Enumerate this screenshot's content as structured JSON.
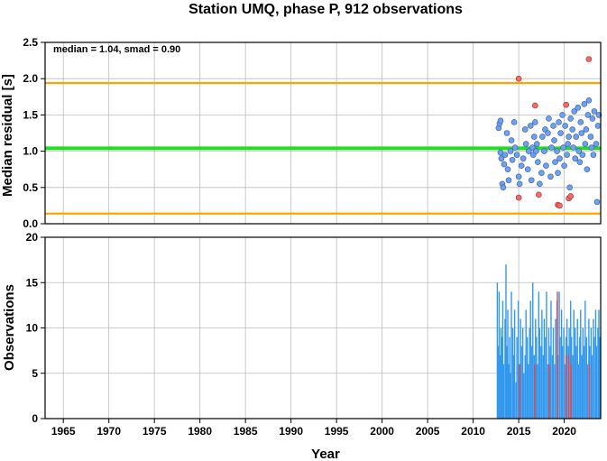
{
  "chart_data": [
    {
      "type": "scatter",
      "title": "Station UMQ, phase P, 912 observations",
      "ylabel": "Median residual [s]",
      "xlim": [
        1963,
        2024
      ],
      "ylim": [
        0,
        2.5
      ],
      "yticks": [
        "0.0",
        "0.5",
        "1.0",
        "1.5",
        "2.0",
        "2.5"
      ],
      "grid": true,
      "annotation": "median = 1.04, smad = 0.90",
      "hlines": [
        {
          "y": 1.04,
          "color": "#22dd22"
        },
        {
          "y": 1.94,
          "color": "#ffa500"
        },
        {
          "y": 0.14,
          "color": "#ffa500"
        }
      ],
      "colors": {
        "normal": "#6ca0f0",
        "outlier": "#f46a6a",
        "edge": "#3a5aa0"
      },
      "points_normal": [
        [
          2012.8,
          1.32
        ],
        [
          2012.9,
          1.38
        ],
        [
          2013.0,
          1.42
        ],
        [
          2013.0,
          0.98
        ],
        [
          2013.1,
          0.9
        ],
        [
          2013.2,
          0.55
        ],
        [
          2013.3,
          0.5
        ],
        [
          2013.4,
          0.82
        ],
        [
          2013.5,
          0.95
        ],
        [
          2013.7,
          1.25
        ],
        [
          2013.8,
          0.75
        ],
        [
          2013.9,
          0.6
        ],
        [
          2014.1,
          1.0
        ],
        [
          2014.2,
          1.15
        ],
        [
          2014.3,
          0.88
        ],
        [
          2014.5,
          1.4
        ],
        [
          2014.6,
          1.05
        ],
        [
          2014.8,
          0.95
        ],
        [
          2015.0,
          0.65
        ],
        [
          2015.1,
          0.55
        ],
        [
          2015.3,
          0.8
        ],
        [
          2015.5,
          0.9
        ],
        [
          2015.7,
          1.3
        ],
        [
          2015.8,
          1.1
        ],
        [
          2016.0,
          0.75
        ],
        [
          2016.1,
          1.0
        ],
        [
          2016.3,
          1.35
        ],
        [
          2016.4,
          0.6
        ],
        [
          2016.5,
          1.05
        ],
        [
          2016.6,
          0.95
        ],
        [
          2016.7,
          1.2
        ],
        [
          2016.8,
          1.4
        ],
        [
          2016.9,
          1.0
        ],
        [
          2017.0,
          1.1
        ],
        [
          2017.1,
          0.85
        ],
        [
          2017.3,
          0.55
        ],
        [
          2017.5,
          0.7
        ],
        [
          2017.6,
          1.2
        ],
        [
          2017.8,
          1.0
        ],
        [
          2017.9,
          1.3
        ],
        [
          2018.0,
          0.8
        ],
        [
          2018.2,
          1.25
        ],
        [
          2018.3,
          1.45
        ],
        [
          2018.5,
          0.65
        ],
        [
          2018.6,
          1.05
        ],
        [
          2018.8,
          1.35
        ],
        [
          2018.9,
          1.15
        ],
        [
          2019.0,
          0.85
        ],
        [
          2019.2,
          1.0
        ],
        [
          2019.3,
          0.7
        ],
        [
          2019.4,
          1.4
        ],
        [
          2019.5,
          0.9
        ],
        [
          2019.6,
          1.25
        ],
        [
          2019.8,
          1.5
        ],
        [
          2019.9,
          1.05
        ],
        [
          2020.0,
          0.8
        ],
        [
          2020.1,
          1.35
        ],
        [
          2020.3,
          0.95
        ],
        [
          2020.4,
          1.1
        ],
        [
          2020.5,
          1.2
        ],
        [
          2020.6,
          0.5
        ],
        [
          2020.7,
          1.45
        ],
        [
          2020.9,
          1.3
        ],
        [
          2021.0,
          1.05
        ],
        [
          2021.1,
          1.55
        ],
        [
          2021.2,
          0.9
        ],
        [
          2021.3,
          1.2
        ],
        [
          2021.5,
          1.6
        ],
        [
          2021.6,
          1.0
        ],
        [
          2021.7,
          0.85
        ],
        [
          2021.8,
          1.4
        ],
        [
          2021.9,
          1.25
        ],
        [
          2022.0,
          0.95
        ],
        [
          2022.2,
          1.65
        ],
        [
          2022.3,
          1.1
        ],
        [
          2022.4,
          1.3
        ],
        [
          2022.5,
          0.75
        ],
        [
          2022.6,
          1.5
        ],
        [
          2022.7,
          1.7
        ],
        [
          2022.9,
          1.2
        ],
        [
          2023.0,
          1.05
        ],
        [
          2023.1,
          1.45
        ],
        [
          2023.2,
          0.95
        ],
        [
          2023.3,
          1.55
        ],
        [
          2023.5,
          1.1
        ],
        [
          2023.6,
          0.3
        ],
        [
          2023.7,
          1.35
        ],
        [
          2023.8,
          1.5
        ]
      ],
      "points_outlier": [
        [
          2015.0,
          2.0
        ],
        [
          2015.0,
          0.36
        ],
        [
          2016.8,
          1.63
        ],
        [
          2017.2,
          0.4
        ],
        [
          2019.3,
          0.26
        ],
        [
          2019.5,
          0.25
        ],
        [
          2020.2,
          1.64
        ],
        [
          2020.5,
          0.35
        ],
        [
          2020.7,
          0.38
        ],
        [
          2022.7,
          2.27
        ]
      ]
    },
    {
      "type": "bar",
      "xlabel": "Year",
      "ylabel": "Observations",
      "xlim": [
        1963,
        2024
      ],
      "ylim": [
        0,
        20
      ],
      "yticks": [
        "0",
        "5",
        "10",
        "15",
        "20"
      ],
      "xticks": [
        "1965",
        "1970",
        "1975",
        "1980",
        "1985",
        "1990",
        "1995",
        "2000",
        "2005",
        "2010",
        "2015",
        "2020"
      ],
      "grid": true,
      "colors": {
        "normal": "#3399ee",
        "outlier": "#ee4444"
      },
      "bars_normal": [
        [
          2012.65,
          15
        ],
        [
          2012.75,
          8
        ],
        [
          2012.85,
          14
        ],
        [
          2012.95,
          7
        ],
        [
          2013.05,
          10
        ],
        [
          2013.15,
          9
        ],
        [
          2013.25,
          13
        ],
        [
          2013.35,
          6
        ],
        [
          2013.5,
          11
        ],
        [
          2013.6,
          17
        ],
        [
          2013.7,
          8
        ],
        [
          2013.8,
          12
        ],
        [
          2013.9,
          6
        ],
        [
          2014.0,
          9
        ],
        [
          2014.1,
          5
        ],
        [
          2014.2,
          14
        ],
        [
          2014.35,
          10
        ],
        [
          2014.45,
          7
        ],
        [
          2014.55,
          12
        ],
        [
          2014.7,
          4
        ],
        [
          2014.8,
          9
        ],
        [
          2014.95,
          13
        ],
        [
          2015.05,
          6
        ],
        [
          2015.2,
          11
        ],
        [
          2015.3,
          8
        ],
        [
          2015.45,
          10
        ],
        [
          2015.55,
          5
        ],
        [
          2015.7,
          7
        ],
        [
          2015.8,
          12
        ],
        [
          2015.95,
          9
        ],
        [
          2016.05,
          6
        ],
        [
          2016.2,
          10
        ],
        [
          2016.3,
          13
        ],
        [
          2016.45,
          8
        ],
        [
          2016.55,
          15
        ],
        [
          2016.7,
          7
        ],
        [
          2016.85,
          11
        ],
        [
          2016.95,
          9
        ],
        [
          2017.05,
          6
        ],
        [
          2017.2,
          14
        ],
        [
          2017.3,
          10
        ],
        [
          2017.45,
          8
        ],
        [
          2017.55,
          12
        ],
        [
          2017.7,
          7
        ],
        [
          2017.8,
          11
        ],
        [
          2017.95,
          9
        ],
        [
          2018.05,
          14
        ],
        [
          2018.2,
          6
        ],
        [
          2018.3,
          10
        ],
        [
          2018.45,
          8
        ],
        [
          2018.55,
          13
        ],
        [
          2018.7,
          7
        ],
        [
          2018.8,
          10
        ],
        [
          2018.95,
          6
        ],
        [
          2019.05,
          11
        ],
        [
          2019.2,
          13
        ],
        [
          2019.3,
          7
        ],
        [
          2019.45,
          14
        ],
        [
          2019.55,
          9
        ],
        [
          2019.7,
          12
        ],
        [
          2019.8,
          8
        ],
        [
          2019.95,
          10
        ],
        [
          2020.05,
          6
        ],
        [
          2020.2,
          9
        ],
        [
          2020.3,
          11
        ],
        [
          2020.45,
          8
        ],
        [
          2020.55,
          10
        ],
        [
          2020.7,
          13
        ],
        [
          2020.8,
          9
        ],
        [
          2020.95,
          7
        ],
        [
          2021.05,
          12
        ],
        [
          2021.2,
          10
        ],
        [
          2021.3,
          8
        ],
        [
          2021.45,
          11
        ],
        [
          2021.55,
          6
        ],
        [
          2021.7,
          9
        ],
        [
          2021.8,
          12
        ],
        [
          2021.95,
          7
        ],
        [
          2022.05,
          10
        ],
        [
          2022.2,
          8
        ],
        [
          2022.3,
          13
        ],
        [
          2022.45,
          9
        ],
        [
          2022.55,
          6
        ],
        [
          2022.7,
          11
        ],
        [
          2022.8,
          8
        ],
        [
          2022.95,
          10
        ],
        [
          2023.05,
          7
        ],
        [
          2023.2,
          11
        ],
        [
          2023.3,
          9
        ],
        [
          2023.45,
          12
        ],
        [
          2023.55,
          8
        ],
        [
          2023.7,
          10
        ],
        [
          2023.8,
          12
        ],
        [
          2023.9,
          9
        ]
      ],
      "bars_outlier": [
        [
          2015.1,
          6
        ],
        [
          2016.75,
          6
        ],
        [
          2018.35,
          6
        ],
        [
          2019.25,
          14
        ],
        [
          2020.2,
          7
        ],
        [
          2020.5,
          7
        ],
        [
          2020.75,
          6
        ],
        [
          2022.75,
          6
        ]
      ]
    }
  ]
}
